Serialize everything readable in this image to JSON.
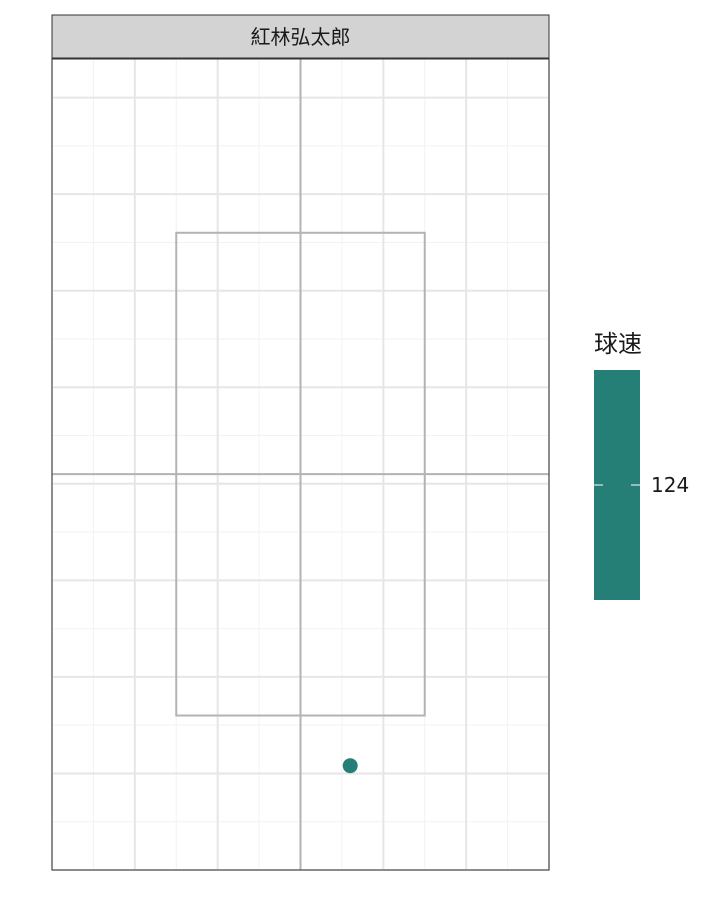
{
  "chart_data": {
    "type": "scatter",
    "facet_label": "紅林弘太郎",
    "xlim": [
      -1.5,
      1.5
    ],
    "ylim": [
      0.5,
      4.7
    ],
    "strike_zone": {
      "x": [
        -0.75,
        0.75
      ],
      "y": [
        1.3,
        3.8
      ]
    },
    "center_lines": {
      "x": 0,
      "y": 2.55
    },
    "grid": true,
    "points": [
      {
        "x": 0.3,
        "y": 1.04,
        "value": 124
      }
    ],
    "legend": {
      "title": "球速",
      "position": "right",
      "color": "#267f76",
      "ticks": [
        124
      ],
      "tick_labels": [
        "124"
      ]
    }
  }
}
